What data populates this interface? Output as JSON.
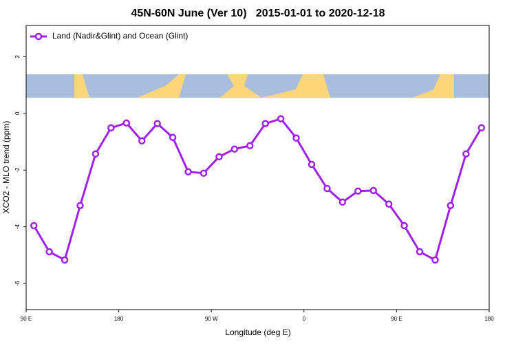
{
  "chart_data": {
    "type": "line",
    "title": "45N-60N June (Ver 10)   2015-01-01 to 2020-12-18",
    "x_label": "Longitude (deg E)",
    "y_label": "XCO2 - MLO trend (ppm)",
    "x": [
      97.5,
      112.5,
      127.5,
      142.5,
      157.5,
      172.5,
      187.5,
      202.5,
      217.5,
      232.5,
      247.5,
      262.5,
      277.5,
      292.5,
      307.5,
      322.5,
      337.5,
      352.5,
      367.5,
      382.5,
      397.5,
      412.5,
      427.5,
      442.5,
      457.5,
      472.5,
      487.5,
      502.5,
      517.5,
      532.5
    ],
    "series": [
      {
        "name": "Land (Nadir&Glint) and Ocean (Glint)",
        "color": "#a020f0",
        "values": [
          -3.96,
          -4.88,
          -5.17,
          -3.25,
          -1.43,
          -0.51,
          -0.34,
          -0.97,
          -0.36,
          -0.85,
          -2.06,
          -2.11,
          -1.53,
          -1.26,
          -1.14,
          -0.36,
          -0.19,
          -0.87,
          -1.8,
          -2.65,
          -3.13,
          -2.74,
          -2.72,
          -3.2,
          -3.96,
          -4.88,
          -5.17,
          -3.25,
          -1.43,
          -0.51
        ]
      }
    ],
    "xlim": [
      90,
      540
    ],
    "xticks": [
      {
        "value": 90,
        "label": "90 E"
      },
      {
        "value": 180,
        "label": "180"
      },
      {
        "value": 270,
        "label": "90 W"
      },
      {
        "value": 360,
        "label": "0"
      },
      {
        "value": 450,
        "label": "90 E"
      },
      {
        "value": 540,
        "label": "180"
      }
    ],
    "ylim": [
      -6.92,
      3.1
    ],
    "yticks": [
      2,
      0,
      -2,
      -4,
      -6
    ],
    "legend": "top-left"
  }
}
